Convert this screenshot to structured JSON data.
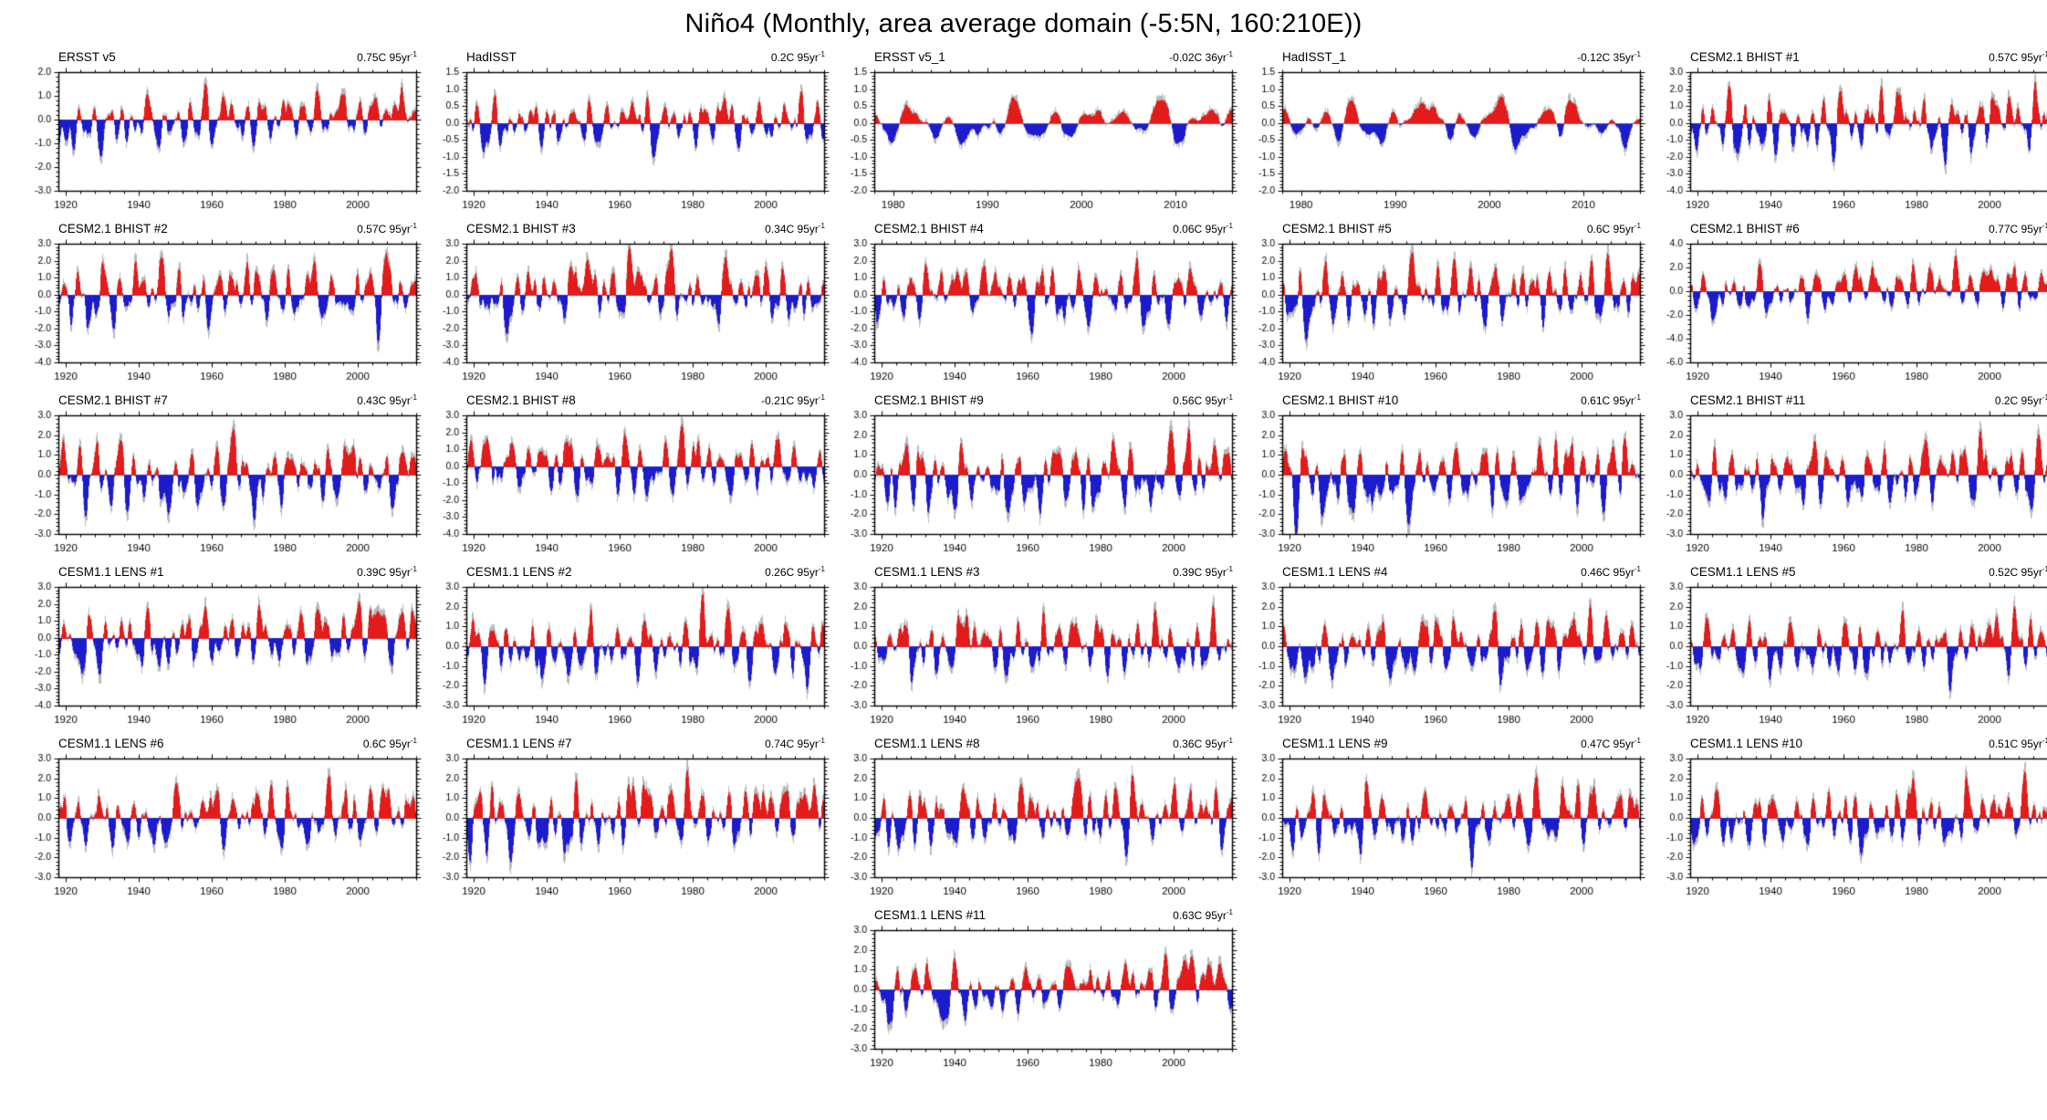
{
  "page_title": "Niño4 (Monthly, area average domain (-5:5N, 160:210E))",
  "meta": {
    "trend_exp": "-1",
    "positive_color": "#e31b1b",
    "negative_color": "#1c1ccd",
    "raw_color": "#b9b9b9",
    "zero_line_color": "#999999",
    "axis_color": "#000000"
  },
  "chart_data": [
    {
      "type": "area",
      "title": "ERSST v5",
      "trend": "0.75C 95yr",
      "ylim": [
        -3,
        2
      ],
      "ytick_step": 1,
      "x_domain": [
        1918,
        2016
      ],
      "x_ticks": [
        1920,
        1940,
        1960,
        1980,
        2000
      ],
      "x_minor_step": 4,
      "amp": 0.95,
      "seed": 11
    },
    {
      "type": "area",
      "title": "HadISST",
      "trend": "0.2C 95yr",
      "ylim": [
        -2,
        1.5
      ],
      "ytick_step": 0.5,
      "x_domain": [
        1918,
        2016
      ],
      "x_ticks": [
        1920,
        1940,
        1960,
        1980,
        2000
      ],
      "x_minor_step": 4,
      "amp": 0.62,
      "seed": 22
    },
    {
      "type": "area",
      "title": "ERSST v5_1",
      "trend": "-0.02C 36yr",
      "ylim": [
        -2,
        1.5
      ],
      "ytick_step": 0.5,
      "x_domain": [
        1978,
        2016
      ],
      "x_ticks": [
        1980,
        1990,
        2000,
        2010
      ],
      "x_minor_step": 2,
      "amp": 0.65,
      "seed": 33
    },
    {
      "type": "area",
      "title": "HadISST_1",
      "trend": "-0.12C 35yr",
      "ylim": [
        -2,
        1.5
      ],
      "ytick_step": 0.5,
      "x_domain": [
        1978,
        2016
      ],
      "x_ticks": [
        1980,
        1990,
        2000,
        2010
      ],
      "x_minor_step": 2,
      "amp": 0.65,
      "seed": 44
    },
    {
      "type": "area",
      "title": "CESM2.1 BHIST #1",
      "trend": "0.57C 95yr",
      "ylim": [
        -4,
        3
      ],
      "ytick_step": 1,
      "x_domain": [
        1918,
        2016
      ],
      "x_ticks": [
        1920,
        1940,
        1960,
        1980,
        2000
      ],
      "x_minor_step": 4,
      "amp": 1.6,
      "seed": 55
    },
    {
      "type": "area",
      "title": "CESM2.1 BHIST #2",
      "trend": "0.57C 95yr",
      "ylim": [
        -4,
        3
      ],
      "ytick_step": 1,
      "x_domain": [
        1918,
        2016
      ],
      "x_ticks": [
        1920,
        1940,
        1960,
        1980,
        2000
      ],
      "x_minor_step": 4,
      "amp": 1.7,
      "seed": 66
    },
    {
      "type": "area",
      "title": "CESM2.1 BHIST #3",
      "trend": "0.34C 95yr",
      "ylim": [
        -4,
        3
      ],
      "ytick_step": 1,
      "x_domain": [
        1918,
        2016
      ],
      "x_ticks": [
        1920,
        1940,
        1960,
        1980,
        2000
      ],
      "x_minor_step": 4,
      "amp": 1.6,
      "seed": 77
    },
    {
      "type": "area",
      "title": "CESM2.1 BHIST #4",
      "trend": "0.06C 95yr",
      "ylim": [
        -4,
        3
      ],
      "ytick_step": 1,
      "x_domain": [
        1918,
        2016
      ],
      "x_ticks": [
        1920,
        1940,
        1960,
        1980,
        2000
      ],
      "x_minor_step": 4,
      "amp": 1.5,
      "seed": 88
    },
    {
      "type": "area",
      "title": "CESM2.1 BHIST #5",
      "trend": "0.6C 95yr",
      "ylim": [
        -4,
        3
      ],
      "ytick_step": 1,
      "x_domain": [
        1918,
        2016
      ],
      "x_ticks": [
        1920,
        1940,
        1960,
        1980,
        2000
      ],
      "x_minor_step": 4,
      "amp": 1.7,
      "seed": 99
    },
    {
      "type": "area",
      "title": "CESM2.1 BHIST #6",
      "trend": "0.77C 95yr",
      "ylim": [
        -6,
        4
      ],
      "ytick_step": 2,
      "x_domain": [
        1918,
        2016
      ],
      "x_ticks": [
        1920,
        1940,
        1960,
        1980,
        2000
      ],
      "x_minor_step": 4,
      "amp": 1.6,
      "seed": 110
    },
    {
      "type": "area",
      "title": "CESM2.1 BHIST #7",
      "trend": "0.43C 95yr",
      "ylim": [
        -3,
        3
      ],
      "ytick_step": 1,
      "x_domain": [
        1918,
        2016
      ],
      "x_ticks": [
        1920,
        1940,
        1960,
        1980,
        2000
      ],
      "x_minor_step": 4,
      "amp": 1.5,
      "seed": 121
    },
    {
      "type": "area",
      "title": "CESM2.1 BHIST #8",
      "trend": "-0.21C 95yr",
      "ylim": [
        -4,
        3
      ],
      "ytick_step": 1,
      "x_domain": [
        1918,
        2016
      ],
      "x_ticks": [
        1920,
        1940,
        1960,
        1980,
        2000
      ],
      "x_minor_step": 4,
      "amp": 1.6,
      "seed": 132
    },
    {
      "type": "area",
      "title": "CESM2.1 BHIST #9",
      "trend": "0.56C 95yr",
      "ylim": [
        -3,
        3
      ],
      "ytick_step": 1,
      "x_domain": [
        1918,
        2016
      ],
      "x_ticks": [
        1920,
        1940,
        1960,
        1980,
        2000
      ],
      "x_minor_step": 4,
      "amp": 1.5,
      "seed": 143
    },
    {
      "type": "area",
      "title": "CESM2.1 BHIST #10",
      "trend": "0.61C 95yr",
      "ylim": [
        -3,
        3
      ],
      "ytick_step": 1,
      "x_domain": [
        1918,
        2016
      ],
      "x_ticks": [
        1920,
        1940,
        1960,
        1980,
        2000
      ],
      "x_minor_step": 4,
      "amp": 1.5,
      "seed": 154
    },
    {
      "type": "area",
      "title": "CESM2.1 BHIST #11",
      "trend": "0.2C 95yr",
      "ylim": [
        -3,
        3
      ],
      "ytick_step": 1,
      "x_domain": [
        1918,
        2016
      ],
      "x_ticks": [
        1920,
        1940,
        1960,
        1980,
        2000
      ],
      "x_minor_step": 4,
      "amp": 1.4,
      "seed": 165
    },
    {
      "type": "area",
      "title": "CESM1.1 LENS #1",
      "trend": "0.39C 95yr",
      "ylim": [
        -4,
        3
      ],
      "ytick_step": 1,
      "x_domain": [
        1918,
        2016
      ],
      "x_ticks": [
        1920,
        1940,
        1960,
        1980,
        2000
      ],
      "x_minor_step": 4,
      "amp": 1.6,
      "seed": 176
    },
    {
      "type": "area",
      "title": "CESM1.1 LENS #2",
      "trend": "0.26C 95yr",
      "ylim": [
        -3,
        3
      ],
      "ytick_step": 1,
      "x_domain": [
        1918,
        2016
      ],
      "x_ticks": [
        1920,
        1940,
        1960,
        1980,
        2000
      ],
      "x_minor_step": 4,
      "amp": 1.4,
      "seed": 187
    },
    {
      "type": "area",
      "title": "CESM1.1 LENS #3",
      "trend": "0.39C 95yr",
      "ylim": [
        -3,
        3
      ],
      "ytick_step": 1,
      "x_domain": [
        1918,
        2016
      ],
      "x_ticks": [
        1920,
        1940,
        1960,
        1980,
        2000
      ],
      "x_minor_step": 4,
      "amp": 1.4,
      "seed": 198
    },
    {
      "type": "area",
      "title": "CESM1.1 LENS #4",
      "trend": "0.46C 95yr",
      "ylim": [
        -3,
        3
      ],
      "ytick_step": 1,
      "x_domain": [
        1918,
        2016
      ],
      "x_ticks": [
        1920,
        1940,
        1960,
        1980,
        2000
      ],
      "x_minor_step": 4,
      "amp": 1.4,
      "seed": 209
    },
    {
      "type": "area",
      "title": "CESM1.1 LENS #5",
      "trend": "0.52C 95yr",
      "ylim": [
        -3,
        3
      ],
      "ytick_step": 1,
      "x_domain": [
        1918,
        2016
      ],
      "x_ticks": [
        1920,
        1940,
        1960,
        1980,
        2000
      ],
      "x_minor_step": 4,
      "amp": 1.4,
      "seed": 220
    },
    {
      "type": "area",
      "title": "CESM1.1 LENS #6",
      "trend": "0.6C 95yr",
      "ylim": [
        -3,
        3
      ],
      "ytick_step": 1,
      "x_domain": [
        1918,
        2016
      ],
      "x_ticks": [
        1920,
        1940,
        1960,
        1980,
        2000
      ],
      "x_minor_step": 4,
      "amp": 1.4,
      "seed": 231
    },
    {
      "type": "area",
      "title": "CESM1.1 LENS #7",
      "trend": "0.74C 95yr",
      "ylim": [
        -3,
        3
      ],
      "ytick_step": 1,
      "x_domain": [
        1918,
        2016
      ],
      "x_ticks": [
        1920,
        1940,
        1960,
        1980,
        2000
      ],
      "x_minor_step": 4,
      "amp": 1.5,
      "seed": 242
    },
    {
      "type": "area",
      "title": "CESM1.1 LENS #8",
      "trend": "0.36C 95yr",
      "ylim": [
        -3,
        3
      ],
      "ytick_step": 1,
      "x_domain": [
        1918,
        2016
      ],
      "x_ticks": [
        1920,
        1940,
        1960,
        1980,
        2000
      ],
      "x_minor_step": 4,
      "amp": 1.4,
      "seed": 253
    },
    {
      "type": "area",
      "title": "CESM1.1 LENS #9",
      "trend": "0.47C 95yr",
      "ylim": [
        -3,
        3
      ],
      "ytick_step": 1,
      "x_domain": [
        1918,
        2016
      ],
      "x_ticks": [
        1920,
        1940,
        1960,
        1980,
        2000
      ],
      "x_minor_step": 4,
      "amp": 1.4,
      "seed": 264
    },
    {
      "type": "area",
      "title": "CESM1.1 LENS #10",
      "trend": "0.51C 95yr",
      "ylim": [
        -3,
        3
      ],
      "ytick_step": 1,
      "x_domain": [
        1918,
        2016
      ],
      "x_ticks": [
        1920,
        1940,
        1960,
        1980,
        2000
      ],
      "x_minor_step": 4,
      "amp": 1.4,
      "seed": 275
    },
    {
      "type": "area",
      "title": "CESM1.1 LENS #11",
      "trend": "0.63C 95yr",
      "ylim": [
        -3,
        3
      ],
      "ytick_step": 1,
      "x_domain": [
        1918,
        2016
      ],
      "x_ticks": [
        1920,
        1940,
        1960,
        1980,
        2000
      ],
      "x_minor_step": 4,
      "amp": 1.3,
      "seed": 286
    }
  ]
}
